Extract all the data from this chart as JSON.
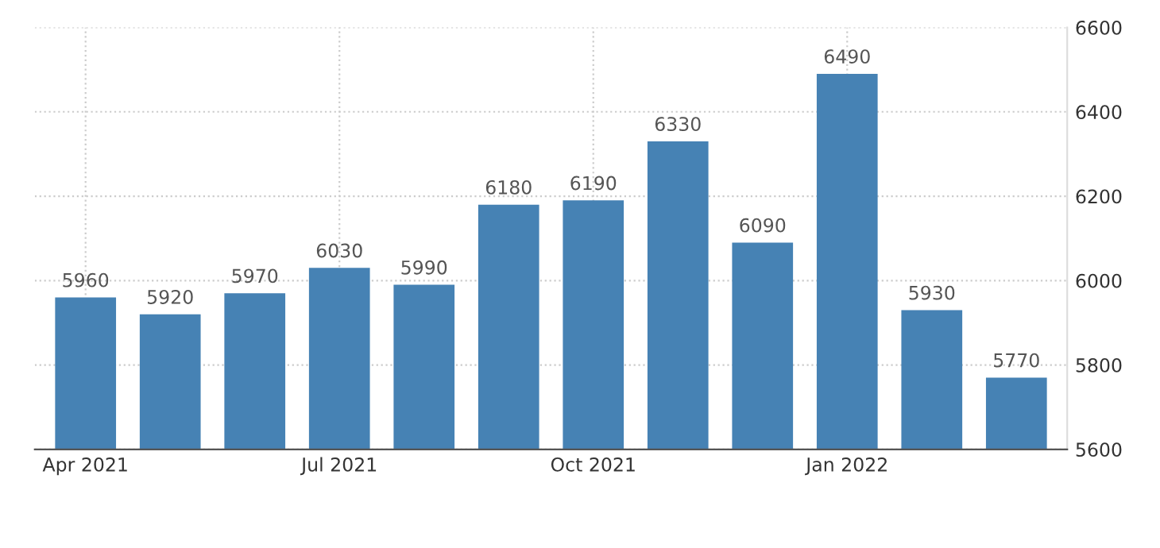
{
  "chart_data": {
    "type": "bar",
    "categories": [
      "Apr 2021",
      null,
      null,
      "Jul 2021",
      null,
      null,
      "Oct 2021",
      null,
      null,
      "Jan 2022",
      null,
      null
    ],
    "values": [
      5960,
      5920,
      5970,
      6030,
      5990,
      6180,
      6190,
      6330,
      6090,
      6490,
      5930,
      5770
    ],
    "color": "#4682b4",
    "ylim": [
      5600,
      6600
    ],
    "yticks": [
      5600,
      5800,
      6000,
      6200,
      6400,
      6600
    ],
    "grid": true,
    "data_labels": true
  }
}
